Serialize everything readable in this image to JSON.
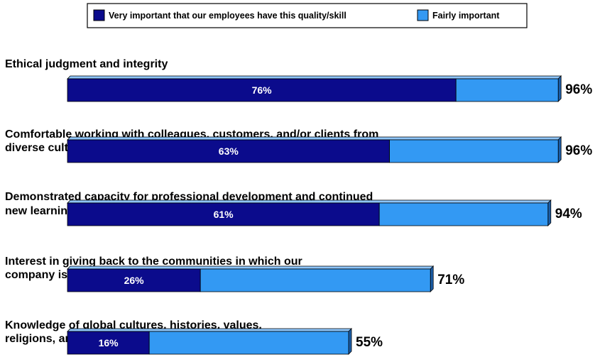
{
  "colors": {
    "very_important": "#0B0B8C",
    "fairly_important": "#3399F3",
    "bar_edge_light": "#8EC5F9",
    "bar_side_dark": "#1B5EA8"
  },
  "legend": {
    "very_important_label": "Very important that our employees have this quality/skill",
    "fairly_important_label": "Fairly important"
  },
  "chart_data": {
    "type": "bar",
    "orientation": "horizontal",
    "stacked": true,
    "xlim": [
      0,
      100
    ],
    "categories": [
      [
        "Ethical judgment and integrity"
      ],
      [
        "Comfortable working with colleagues, customers, and/or clients from",
        "diverse cultural backgrounds"
      ],
      [
        "Demonstrated capacity for professional development and continued",
        "new learning"
      ],
      [
        "Interest in giving back to the communities in which our",
        "company is located or those that it serves"
      ],
      [
        "Knowledge of global cultures, histories, values,",
        "religions, and social systems"
      ]
    ],
    "series": [
      {
        "name": "Very important that our employees have this quality/skill",
        "values": [
          76,
          63,
          61,
          26,
          16
        ],
        "labels": [
          "76%",
          "63%",
          "61%",
          "26%",
          "16%"
        ]
      },
      {
        "name": "Fairly important",
        "values": [
          20,
          33,
          33,
          45,
          39
        ]
      }
    ],
    "totals": [
      96,
      96,
      94,
      71,
      55
    ],
    "total_labels": [
      "96%",
      "96%",
      "94%",
      "71%",
      "55%"
    ],
    "legend_position": "top-center",
    "grid": false
  }
}
